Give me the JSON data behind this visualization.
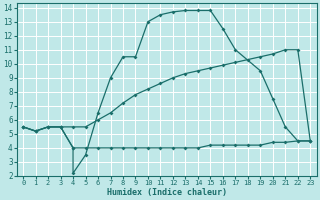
{
  "xlabel": "Humidex (Indice chaleur)",
  "bg_color": "#c0e8e8",
  "grid_color": "#ffffff",
  "line_color": "#1a6e6a",
  "xlim": [
    -0.5,
    23.5
  ],
  "ylim": [
    2,
    14.3
  ],
  "xticks": [
    0,
    1,
    2,
    3,
    4,
    5,
    6,
    7,
    8,
    9,
    10,
    11,
    12,
    13,
    14,
    15,
    16,
    17,
    18,
    19,
    20,
    21,
    22,
    23
  ],
  "yticks": [
    2,
    3,
    4,
    5,
    6,
    7,
    8,
    9,
    10,
    11,
    12,
    13,
    14
  ],
  "line2_x": [
    0,
    1,
    2,
    3,
    4,
    4,
    5,
    6,
    7,
    8,
    9,
    10,
    11,
    12,
    13,
    14,
    15,
    16,
    17,
    19,
    20,
    21,
    22,
    23
  ],
  "line2_y": [
    5.5,
    5.2,
    5.5,
    5.5,
    4.0,
    2.2,
    3.5,
    6.5,
    9.0,
    10.5,
    10.5,
    13.0,
    13.5,
    13.7,
    13.8,
    13.8,
    13.8,
    12.5,
    11.0,
    9.5,
    7.5,
    5.5,
    4.5,
    4.5
  ],
  "line1_x": [
    0,
    1,
    2,
    3,
    4,
    5,
    6,
    7,
    8,
    9,
    10,
    11,
    12,
    13,
    14,
    15,
    16,
    17,
    18,
    19,
    20,
    21,
    22,
    23
  ],
  "line1_y": [
    5.5,
    5.2,
    5.5,
    5.5,
    5.5,
    5.5,
    6.0,
    6.5,
    7.2,
    7.8,
    8.2,
    8.6,
    9.0,
    9.3,
    9.5,
    9.7,
    9.9,
    10.1,
    10.3,
    10.5,
    10.7,
    11.0,
    11.0,
    4.5
  ],
  "line3_x": [
    0,
    1,
    2,
    3,
    4,
    5,
    6,
    7,
    8,
    9,
    10,
    11,
    12,
    13,
    14,
    15,
    16,
    17,
    18,
    19,
    20,
    21,
    22,
    23
  ],
  "line3_y": [
    5.5,
    5.2,
    5.5,
    5.5,
    4.0,
    4.0,
    4.0,
    4.0,
    4.0,
    4.0,
    4.0,
    4.0,
    4.0,
    4.0,
    4.0,
    4.2,
    4.2,
    4.2,
    4.2,
    4.2,
    4.4,
    4.4,
    4.5,
    4.5
  ]
}
